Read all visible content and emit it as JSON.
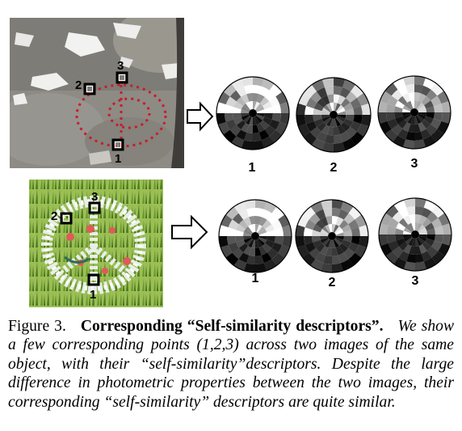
{
  "figure": {
    "top_row": {
      "markers": [
        "1",
        "2",
        "3"
      ],
      "descriptor_labels": [
        "1",
        "2",
        "3"
      ]
    },
    "bottom_row": {
      "markers": [
        "1",
        "2",
        "3"
      ],
      "descriptor_labels": [
        "1",
        "2",
        "3"
      ]
    },
    "colors": {
      "rock": "#8c8a82",
      "snow": "#f2f2f0",
      "stake": "#c81d2e",
      "grass": "#8cb24a",
      "grass_dark": "#4e7a22",
      "flower": "#e05a5a"
    }
  },
  "caption": {
    "label": "Figure 3.",
    "title": "Corresponding “Self-similarity descriptors”.",
    "body": "We show a few corresponding points (1,2,3) across two images of the same object, with their “self-similarity”descriptors. Despite the large difference in photometric properties between the two images, their corresponding “self-similarity” descriptors are quite similar."
  }
}
